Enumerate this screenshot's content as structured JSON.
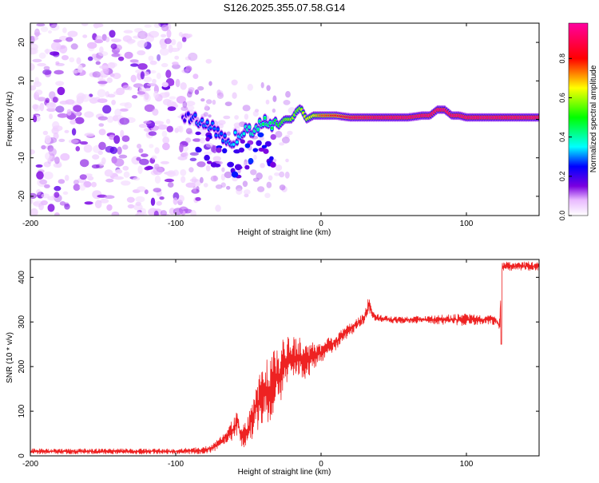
{
  "title": "S126.2025.355.07.58.G14",
  "colors": {
    "snr_line": "#ee2222",
    "axis": "#000000",
    "low_amp": "#cc99ff",
    "mid_amp": "#7a00e0"
  },
  "chart_data": [
    {
      "type": "heatmap",
      "name": "spectrogram",
      "xlabel": "Height of straight line (km)",
      "ylabel": "Frequency (Hz)",
      "xlim": [
        -200,
        150
      ],
      "ylim": [
        -25,
        25
      ],
      "xticks": [
        {
          "value": -200,
          "label": "-200"
        },
        {
          "value": -100,
          "label": "-100"
        },
        {
          "value": 0,
          "label": "0"
        },
        {
          "value": 100,
          "label": "100"
        }
      ],
      "yticks": [
        {
          "value": -20,
          "label": "-20"
        },
        {
          "value": -10,
          "label": "-10"
        },
        {
          "value": 0,
          "label": "0"
        },
        {
          "value": 10,
          "label": "10"
        },
        {
          "value": 20,
          "label": "20"
        }
      ],
      "ridge": {
        "x": [
          -95,
          -90,
          -85,
          -80,
          -75,
          -70,
          -65,
          -60,
          -55,
          -50,
          -45,
          -40,
          -35,
          -30,
          -25,
          -20,
          -17,
          -14,
          -10,
          -5,
          0,
          10,
          20,
          40,
          60,
          70,
          75,
          80,
          85,
          90,
          95,
          100,
          105,
          110,
          120,
          130,
          140,
          150
        ],
        "freq": [
          1,
          0,
          0,
          -1,
          -2,
          -4,
          -6,
          -5,
          -4,
          -2,
          -3,
          -1,
          -1,
          -2,
          0,
          0,
          2,
          3,
          0,
          1,
          1,
          1,
          0.5,
          0.5,
          0.5,
          1,
          1,
          2.5,
          2.5,
          1,
          1,
          0.5,
          0.5,
          0.5,
          0.5,
          0.5,
          0.5,
          0.5
        ],
        "amplitude": [
          0.2,
          0.25,
          0.3,
          0.3,
          0.3,
          0.28,
          0.3,
          0.35,
          0.35,
          0.4,
          0.4,
          0.45,
          0.45,
          0.5,
          0.55,
          0.6,
          0.55,
          0.6,
          0.65,
          0.65,
          0.75,
          0.8,
          0.9,
          0.95,
          0.95,
          0.95,
          0.95,
          0.95,
          0.95,
          0.95,
          0.95,
          0.95,
          0.95,
          0.95,
          0.95,
          0.95,
          0.95,
          0.95
        ]
      },
      "noise_region_x": [
        -200,
        -80
      ]
    },
    {
      "type": "colorbar",
      "label": "Normalized spectral amplitude",
      "range": [
        0,
        0.98
      ],
      "ticks": [
        {
          "value": 0.0,
          "label": "0.0"
        },
        {
          "value": 0.2,
          "label": "0.2"
        },
        {
          "value": 0.4,
          "label": "0.4"
        },
        {
          "value": 0.6,
          "label": "0.6"
        },
        {
          "value": 0.8,
          "label": "0.8"
        }
      ],
      "stops": [
        {
          "value": 0.0,
          "color": "#ffffff"
        },
        {
          "value": 0.08,
          "color": "#e8b8ff"
        },
        {
          "value": 0.15,
          "color": "#7a00e0"
        },
        {
          "value": 0.25,
          "color": "#0000ff"
        },
        {
          "value": 0.35,
          "color": "#00ffff"
        },
        {
          "value": 0.5,
          "color": "#00ff00"
        },
        {
          "value": 0.65,
          "color": "#ffff00"
        },
        {
          "value": 0.8,
          "color": "#ff0000"
        },
        {
          "value": 1.0,
          "color": "#ff00a0"
        }
      ]
    },
    {
      "type": "line",
      "name": "snr",
      "xlabel": "Height of straight line (km)",
      "ylabel": "SNR (10 * v/v)",
      "xlim": [
        -200,
        150
      ],
      "ylim": [
        0,
        440
      ],
      "xticks": [
        {
          "value": -200,
          "label": "-200"
        },
        {
          "value": -100,
          "label": "-100"
        },
        {
          "value": 0,
          "label": "0"
        },
        {
          "value": 100,
          "label": "100"
        }
      ],
      "yticks": [
        {
          "value": 0,
          "label": "0"
        },
        {
          "value": 100,
          "label": "100"
        },
        {
          "value": 200,
          "label": "200"
        },
        {
          "value": 300,
          "label": "300"
        },
        {
          "value": 400,
          "label": "400"
        }
      ],
      "series": [
        {
          "name": "SNR",
          "x": [
            -200,
            -150,
            -100,
            -80,
            -75,
            -70,
            -65,
            -60,
            -57,
            -55,
            -50,
            -45,
            -40,
            -35,
            -30,
            -25,
            -20,
            -15,
            -10,
            -5,
            0,
            5,
            10,
            15,
            20,
            25,
            30,
            33,
            35,
            40,
            50,
            60,
            70,
            80,
            90,
            100,
            110,
            115,
            120,
            123,
            124,
            125,
            130,
            140,
            150
          ],
          "y": [
            10,
            10,
            10,
            12,
            18,
            28,
            45,
            60,
            80,
            40,
            55,
            110,
            135,
            150,
            175,
            205,
            220,
            225,
            210,
            225,
            230,
            245,
            255,
            270,
            285,
            295,
            310,
            340,
            315,
            308,
            305,
            305,
            305,
            305,
            305,
            305,
            305,
            305,
            305,
            290,
            420,
            425,
            425,
            425,
            425
          ],
          "noise": [
            6,
            6,
            6,
            8,
            10,
            12,
            18,
            24,
            30,
            20,
            35,
            55,
            70,
            75,
            70,
            60,
            50,
            45,
            40,
            30,
            25,
            20,
            18,
            15,
            15,
            15,
            12,
            20,
            10,
            8,
            8,
            8,
            8,
            10,
            12,
            15,
            10,
            10,
            12,
            20,
            10,
            10,
            10,
            10,
            10
          ]
        }
      ]
    }
  ]
}
